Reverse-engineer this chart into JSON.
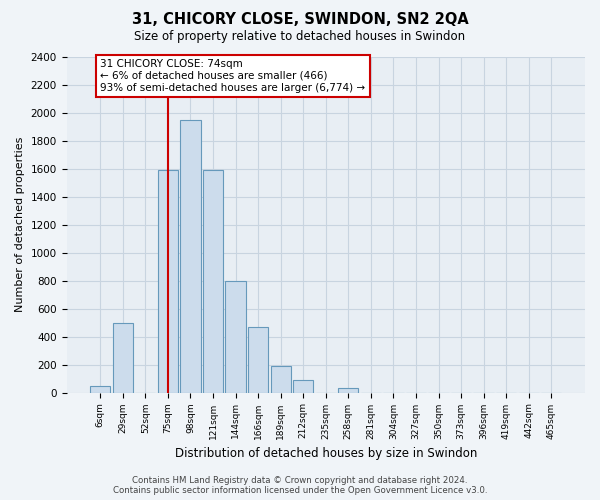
{
  "title": "31, CHICORY CLOSE, SWINDON, SN2 2QA",
  "subtitle": "Size of property relative to detached houses in Swindon",
  "xlabel": "Distribution of detached houses by size in Swindon",
  "ylabel": "Number of detached properties",
  "bar_labels": [
    "6sqm",
    "29sqm",
    "52sqm",
    "75sqm",
    "98sqm",
    "121sqm",
    "144sqm",
    "166sqm",
    "189sqm",
    "212sqm",
    "235sqm",
    "258sqm",
    "281sqm",
    "304sqm",
    "327sqm",
    "350sqm",
    "373sqm",
    "396sqm",
    "419sqm",
    "442sqm",
    "465sqm"
  ],
  "bar_values": [
    50,
    500,
    0,
    1590,
    1950,
    1590,
    800,
    470,
    190,
    90,
    0,
    30,
    0,
    0,
    0,
    0,
    0,
    0,
    0,
    0,
    0
  ],
  "bar_color": "#ccdcec",
  "bar_edge_color": "#6699bb",
  "annotation_title": "31 CHICORY CLOSE: 74sqm",
  "annotation_line1": "← 6% of detached houses are smaller (466)",
  "annotation_line2": "93% of semi-detached houses are larger (6,774) →",
  "vline_x_index": 3,
  "vline_color": "#cc0000",
  "annotation_box_color": "#ffffff",
  "annotation_box_edge_color": "#cc0000",
  "ylim": [
    0,
    2400
  ],
  "yticks": [
    0,
    200,
    400,
    600,
    800,
    1000,
    1200,
    1400,
    1600,
    1800,
    2000,
    2200,
    2400
  ],
  "footer_line1": "Contains HM Land Registry data © Crown copyright and database right 2024.",
  "footer_line2": "Contains public sector information licensed under the Open Government Licence v3.0.",
  "bg_color": "#f0f4f8",
  "plot_bg_color": "#e8eef4",
  "grid_color": "#c8d4e0"
}
